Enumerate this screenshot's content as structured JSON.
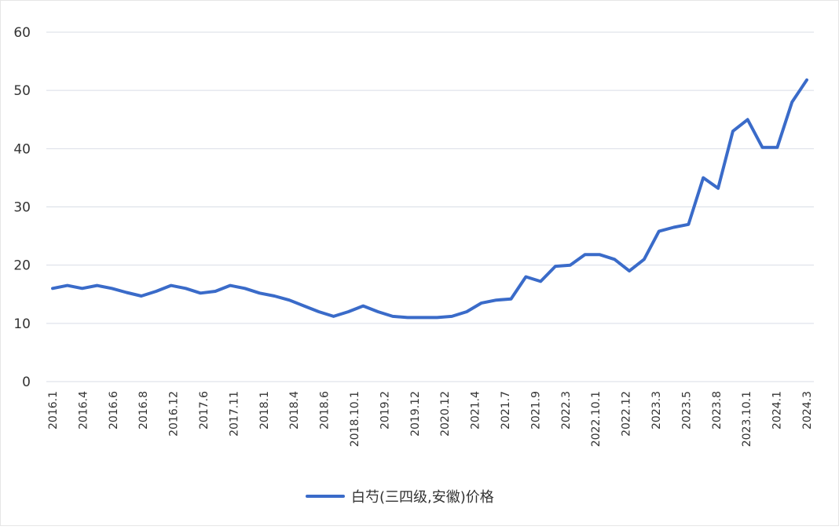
{
  "chart_data": {
    "type": "line",
    "title": "",
    "xlabel": "",
    "ylabel": "",
    "ylim": [
      0,
      60
    ],
    "yticks": [
      0,
      10,
      20,
      30,
      40,
      50,
      60
    ],
    "grid": true,
    "legend_position": "bottom",
    "color": "#3a6bc9",
    "x_tick_labels": [
      "2016.1",
      "2016.4",
      "2016.6",
      "2016.8",
      "2016.12",
      "2017.6",
      "2017.11",
      "2018.1",
      "2018.4",
      "2018.6",
      "2018.10.1",
      "2019.2",
      "2019.12",
      "2020.12",
      "2021.4",
      "2021.7",
      "2021.9",
      "2022.3",
      "2022.10.1",
      "2022.12",
      "2023.3",
      "2023.5",
      "2023.8",
      "2023.10.1",
      "2024.1",
      "2024.3"
    ],
    "series": [
      {
        "name": "白芍(三四级,安徽)价格",
        "values": [
          16,
          16.5,
          16,
          16.5,
          16,
          15.3,
          14.7,
          15.5,
          16.5,
          16,
          15.2,
          15.5,
          16.5,
          16,
          15.2,
          14.7,
          14,
          13,
          12,
          11.2,
          12,
          13,
          12,
          11.2,
          11,
          11,
          11,
          11.2,
          12,
          13.5,
          14,
          14.2,
          18,
          17.2,
          19.8,
          20,
          21.8,
          21.8,
          21,
          19,
          21,
          25.8,
          26.5,
          27,
          35,
          33.2,
          43,
          45,
          40.2,
          40.2,
          48,
          51.8
        ]
      }
    ]
  }
}
